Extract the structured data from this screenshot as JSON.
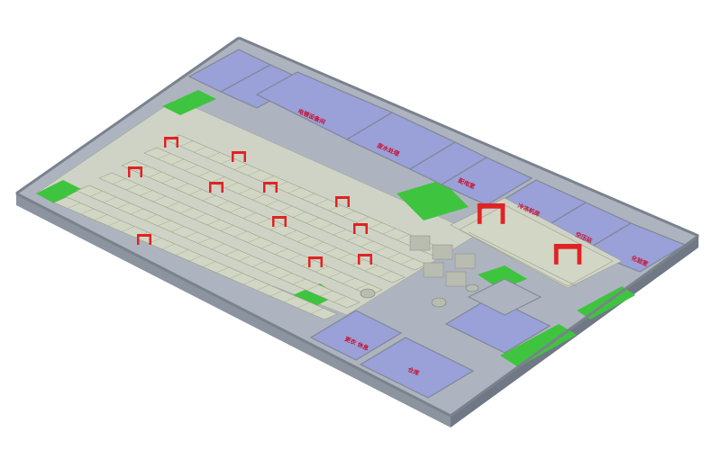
{
  "colors": {
    "wall_top": "#aeb4bf",
    "wall_side": "#8c949f",
    "wall_dark": "#6f7884",
    "floor_room": "#9aa0d8",
    "floor_green": "#3fc43f",
    "floor_hall": "#cfd3c6",
    "line_body": "#d2d6c4",
    "line_edge": "#9aa08c",
    "crane": "#e02323",
    "equipment": "#b9bdb0",
    "label": "#c8102e"
  },
  "room_labels": [
    {
      "id": "room-label-top-left",
      "text": "电镀设备间"
    },
    {
      "id": "room-label-top-mid",
      "text": "废水处理"
    },
    {
      "id": "room-label-right-1",
      "text": "配电室"
    },
    {
      "id": "room-label-right-2",
      "text": "冷冻机房"
    },
    {
      "id": "room-label-right-3",
      "text": "空压站"
    },
    {
      "id": "room-label-right-4",
      "text": "化验室"
    },
    {
      "id": "room-label-bottom-1",
      "text": "更衣 休息"
    },
    {
      "id": "room-label-bottom-2",
      "text": "仓库"
    }
  ]
}
